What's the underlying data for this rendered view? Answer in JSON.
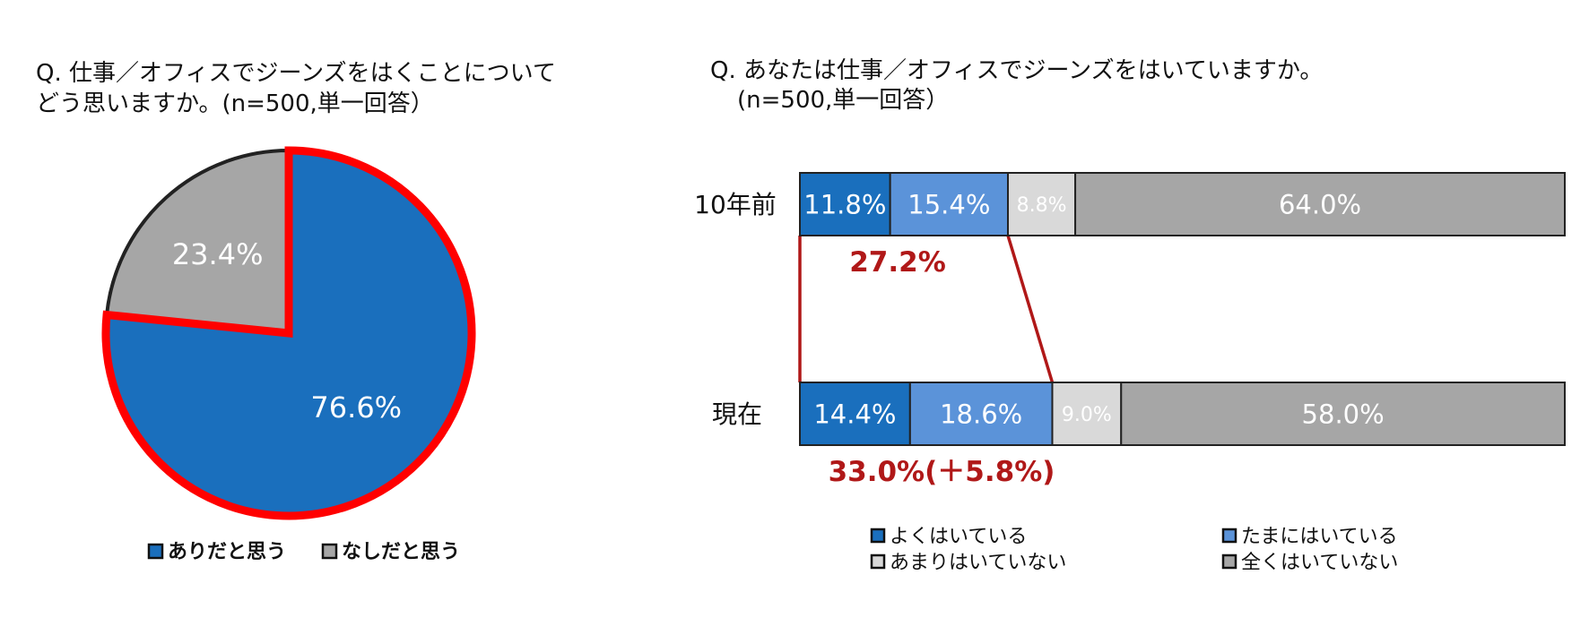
{
  "colors": {
    "blue_dark": "#1a6fbd",
    "blue_light": "#5b93d9",
    "gray_light": "#d9d9d9",
    "gray_mid": "#a6a6a6",
    "highlight_red": "#ff0000",
    "annotation_red": "#b01818",
    "outline": "#222222"
  },
  "chart_data": [
    {
      "type": "pie",
      "title_lines": [
        "Q. 仕事／オフィスでジーンズをはくことについて",
        "どう思いますか。(n=500,単一回答）"
      ],
      "slices": [
        {
          "label": "ありだと思う",
          "value": 76.6,
          "value_label": "76.6%",
          "color": "#1a6fbd",
          "highlighted": true
        },
        {
          "label": "なしだと思う",
          "value": 23.4,
          "value_label": "23.4%",
          "color": "#a6a6a6",
          "highlighted": false
        }
      ],
      "legend_position": "bottom"
    },
    {
      "type": "bar",
      "orientation": "horizontal",
      "stacked": true,
      "title_lines": [
        "Q. あなたは仕事／オフィスでジーンズをはいていますか。",
        "(n=500,単一回答）"
      ],
      "categories": [
        "10年前",
        "現在"
      ],
      "series": [
        {
          "name": "よくはいている",
          "values": [
            11.8,
            14.4
          ],
          "labels": [
            "11.8%",
            "14.4%"
          ],
          "color": "#1a6fbd"
        },
        {
          "name": "たまにはいている",
          "values": [
            15.4,
            18.6
          ],
          "labels": [
            "15.4%",
            "18.6%"
          ],
          "color": "#5b93d9"
        },
        {
          "name": "あまりはいていない",
          "values": [
            8.8,
            9.0
          ],
          "labels": [
            "8.8%",
            "9.0%"
          ],
          "color": "#d9d9d9"
        },
        {
          "name": "全くはいていない",
          "values": [
            64.0,
            58.0
          ],
          "labels": [
            "64.0%",
            "58.0%"
          ],
          "color": "#a6a6a6"
        }
      ],
      "annotations": [
        "27.2%",
        "33.0%(＋5.8%)"
      ],
      "xlim": [
        0,
        100
      ],
      "legend_position": "bottom"
    }
  ]
}
